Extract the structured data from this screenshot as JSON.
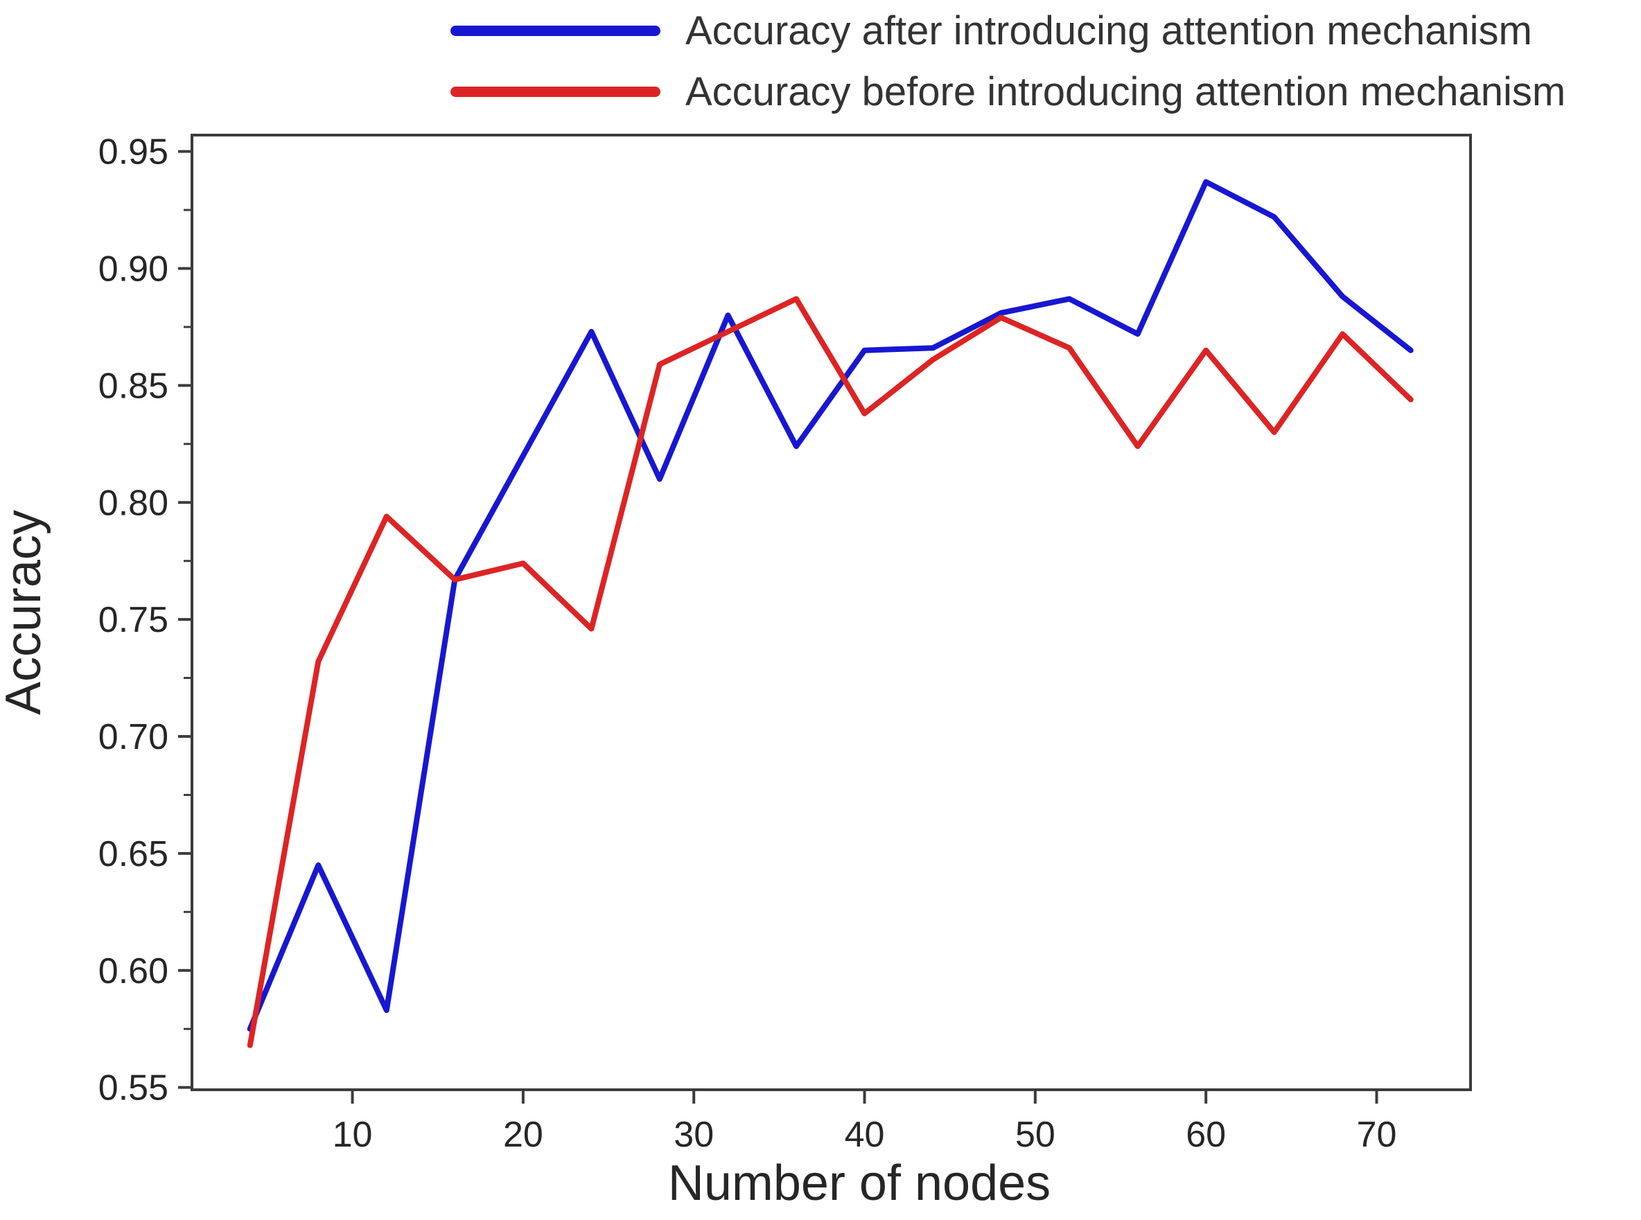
{
  "figure": {
    "kind": "matplotlib-style line figure",
    "background": "#ffffff"
  },
  "legend": {
    "position": "top-outside",
    "items": [
      {
        "label": "Accuracy after introducing attention mechanism",
        "color": "#1717d2"
      },
      {
        "label": "Accuracy before introducing attention mechanism",
        "color": "#dd2424"
      }
    ]
  },
  "axes_style": {
    "spine_color": "#3c3c3c",
    "tick_color": "#3c3c3c",
    "text_color": "#262626",
    "grid": false
  },
  "chart_data": {
    "type": "line",
    "title": "",
    "xlabel": "Number of nodes",
    "ylabel": "Accuracy",
    "x": [
      4,
      8,
      12,
      16,
      20,
      24,
      28,
      32,
      36,
      40,
      44,
      48,
      52,
      56,
      60,
      64,
      68,
      72
    ],
    "series": [
      {
        "name": "Accuracy after introducing attention mechanism",
        "color": "#1717d2",
        "values": [
          0.575,
          0.645,
          0.583,
          0.767,
          0.82,
          0.873,
          0.81,
          0.88,
          0.824,
          0.865,
          0.866,
          0.881,
          0.887,
          0.872,
          0.937,
          0.922,
          0.888,
          0.865
        ]
      },
      {
        "name": "Accuracy before introducing attention mechanism",
        "color": "#dd2424",
        "values": [
          0.568,
          0.732,
          0.794,
          0.767,
          0.774,
          0.746,
          0.859,
          0.873,
          0.887,
          0.838,
          0.861,
          0.879,
          0.866,
          0.824,
          0.865,
          0.83,
          0.872,
          0.844
        ]
      }
    ],
    "xlim": [
      0.6,
      75.5
    ],
    "ylim": [
      0.549,
      0.957
    ],
    "xticks": [
      10,
      20,
      30,
      40,
      50,
      60,
      70
    ],
    "xtick_labels": [
      "10",
      "20",
      "30",
      "40",
      "50",
      "60",
      "70"
    ],
    "yticks": [
      0.55,
      0.6,
      0.65,
      0.7,
      0.75,
      0.8,
      0.85,
      0.9,
      0.95
    ],
    "ytick_labels": [
      "0.55",
      "0.60",
      "0.65",
      "0.70",
      "0.75",
      "0.80",
      "0.85",
      "0.90",
      "0.95"
    ],
    "y_minor_ticks": [
      0.575,
      0.625,
      0.675,
      0.725,
      0.775,
      0.825,
      0.875,
      0.925
    ],
    "legend_position": "top-outside",
    "line_width": 8
  }
}
